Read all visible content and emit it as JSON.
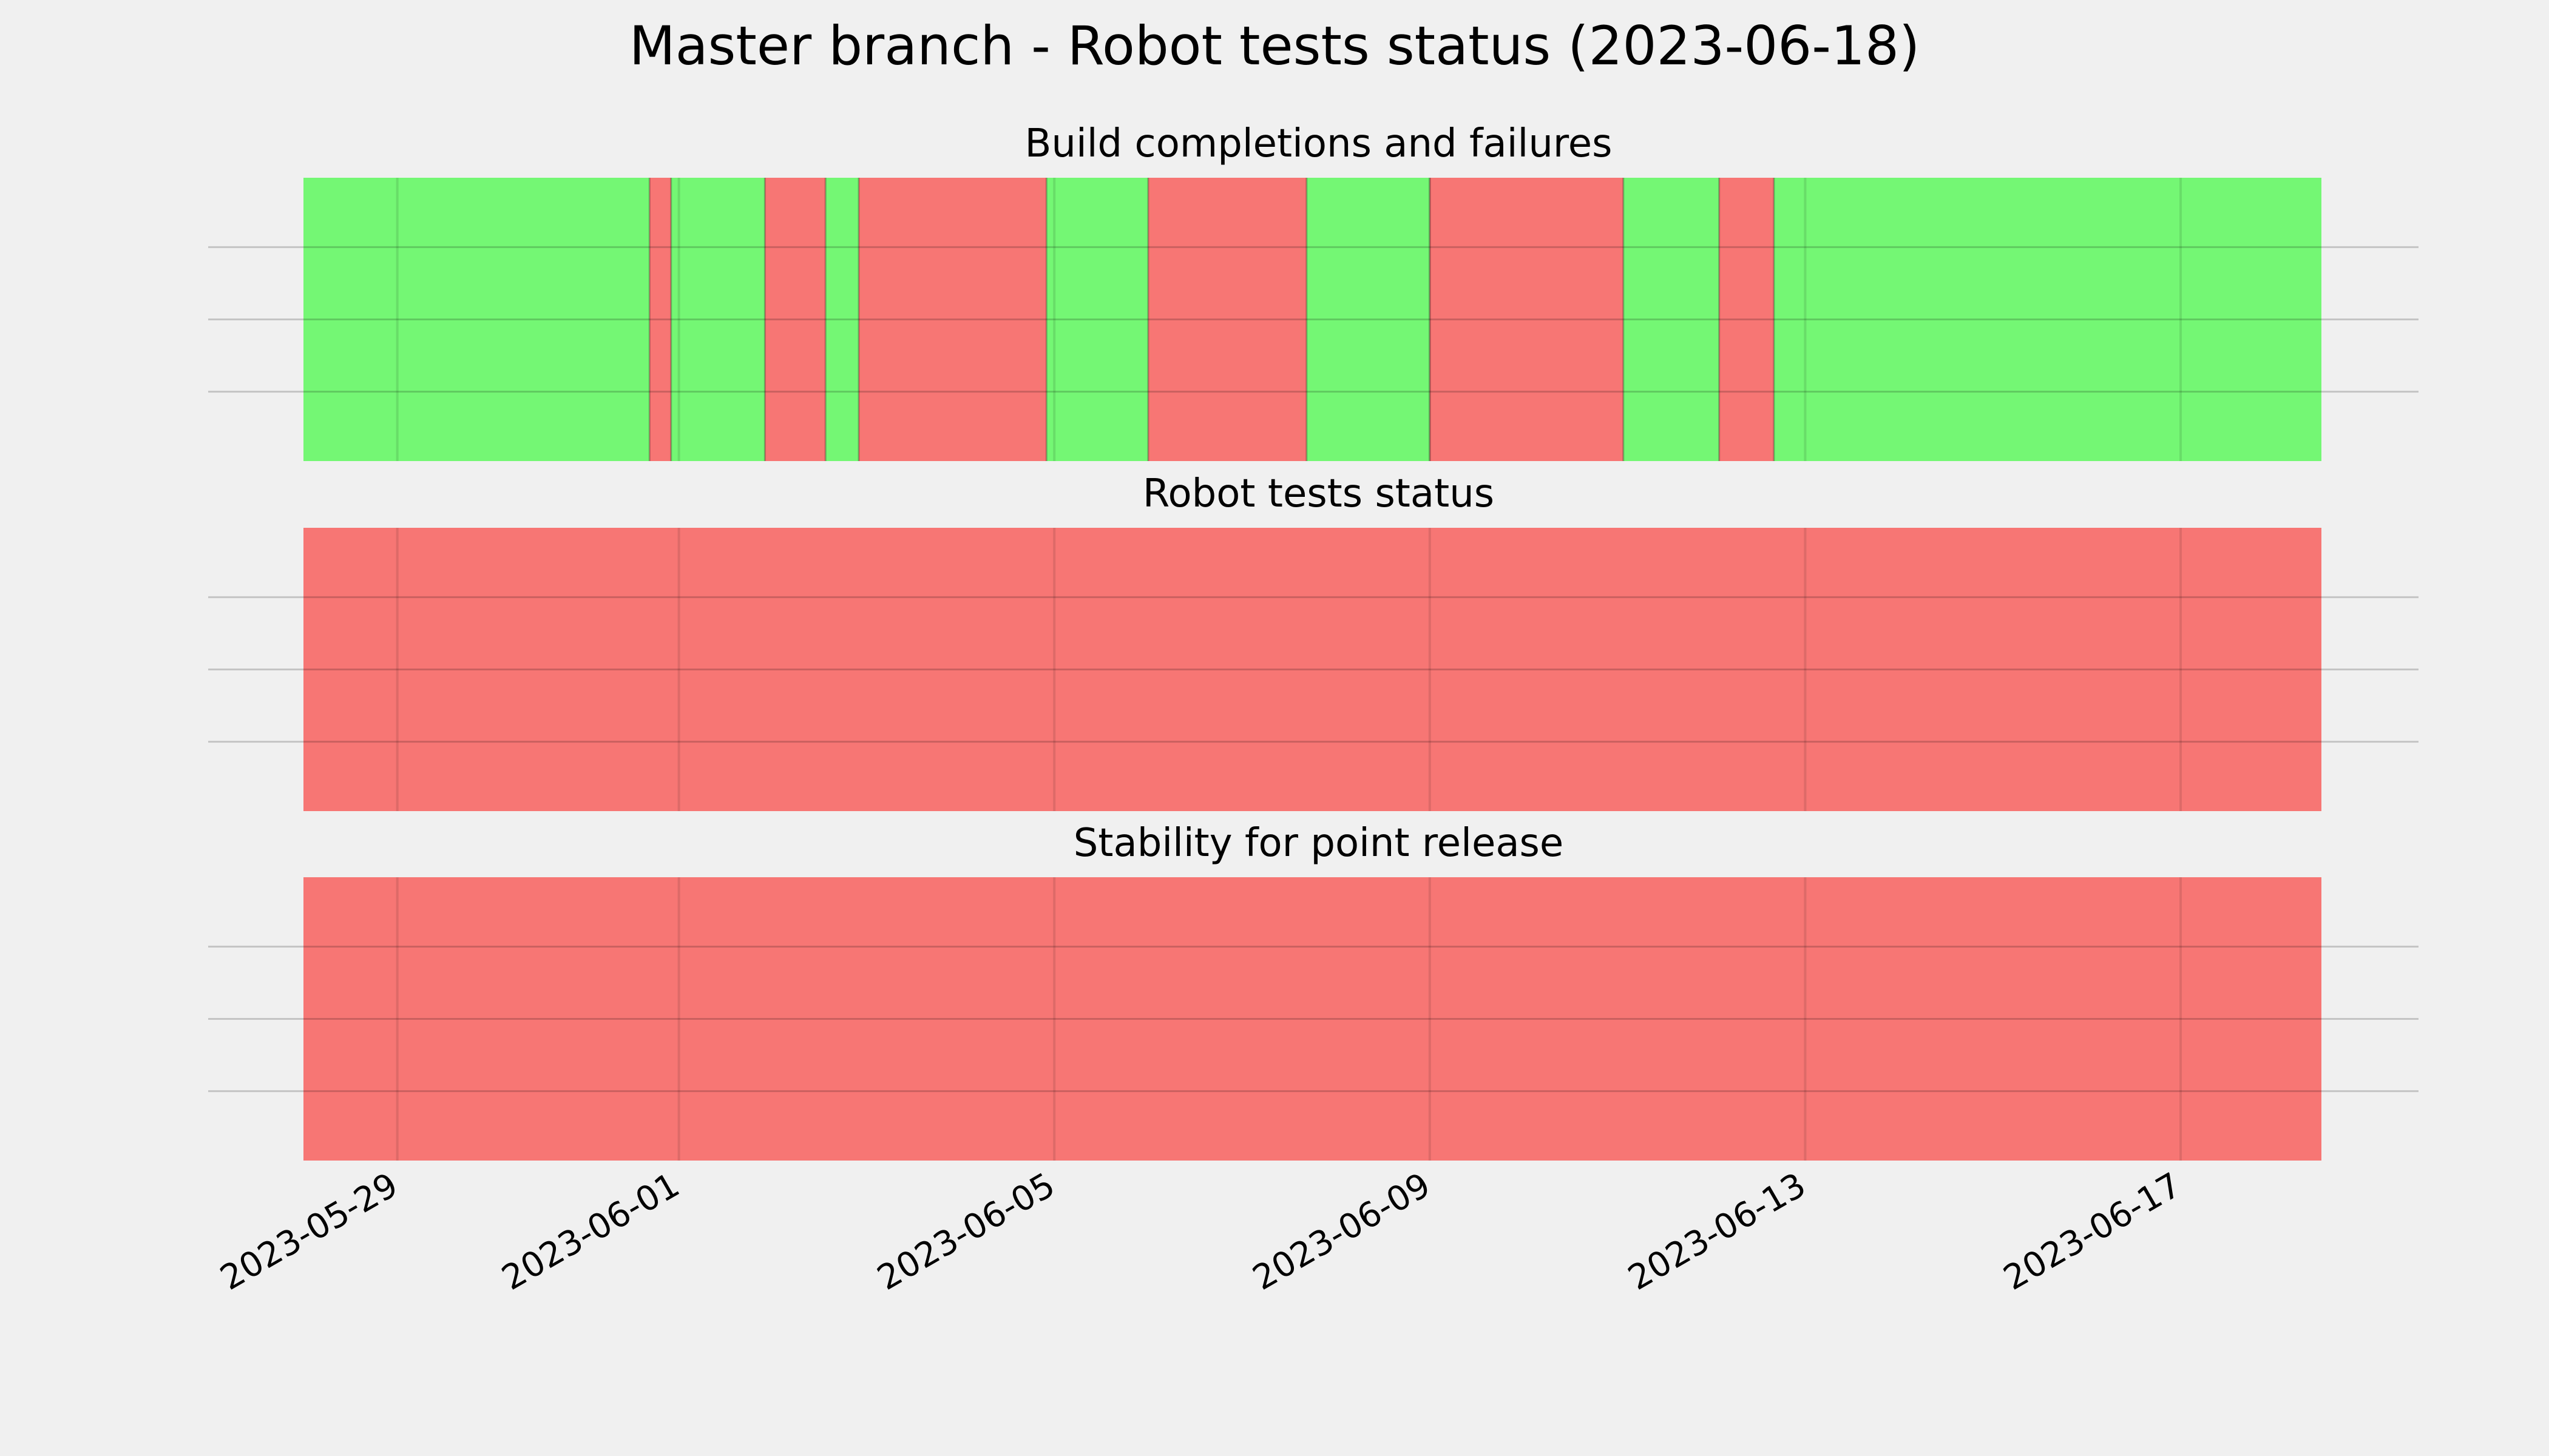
{
  "title": "Master branch - Robot tests status (2023-06-18)",
  "colors": {
    "background": "#f0f0f0",
    "success": "#74f774",
    "failure": "#f77674",
    "grid": "#c8c8c8"
  },
  "chart_data": [
    {
      "type": "area",
      "title": "Build completions and failures",
      "grid": true,
      "xlim": [
        "2023-05-28T00:00",
        "2023-06-18T12:00"
      ],
      "segments": [
        {
          "start": "2023-05-28T00:00",
          "end": "2023-05-31T16:30",
          "status": "success"
        },
        {
          "start": "2023-05-31T16:30",
          "end": "2023-05-31T22:00",
          "status": "failure"
        },
        {
          "start": "2023-05-31T22:00",
          "end": "2023-06-01T22:00",
          "status": "success"
        },
        {
          "start": "2023-06-01T22:00",
          "end": "2023-06-02T13:30",
          "status": "failure"
        },
        {
          "start": "2023-06-02T13:30",
          "end": "2023-06-02T22:00",
          "status": "success"
        },
        {
          "start": "2023-06-02T22:00",
          "end": "2023-06-04T22:00",
          "status": "failure"
        },
        {
          "start": "2023-06-04T22:00",
          "end": "2023-06-06T00:00",
          "status": "success"
        },
        {
          "start": "2023-06-06T00:00",
          "end": "2023-06-07T16:30",
          "status": "failure"
        },
        {
          "start": "2023-06-07T16:30",
          "end": "2023-06-09T00:00",
          "status": "success"
        },
        {
          "start": "2023-06-09T00:00",
          "end": "2023-06-11T01:30",
          "status": "failure"
        },
        {
          "start": "2023-06-11T01:30",
          "end": "2023-06-12T02:00",
          "status": "success"
        },
        {
          "start": "2023-06-12T02:00",
          "end": "2023-06-12T16:00",
          "status": "failure"
        },
        {
          "start": "2023-06-12T16:00",
          "end": "2023-06-18T12:00",
          "status": "success"
        }
      ]
    },
    {
      "type": "area",
      "title": "Robot tests status",
      "grid": true,
      "xlim": [
        "2023-05-28T00:00",
        "2023-06-18T12:00"
      ],
      "segments": [
        {
          "start": "2023-05-28T00:00",
          "end": "2023-06-18T12:00",
          "status": "failure"
        }
      ]
    },
    {
      "type": "area",
      "title": "Stability for point release",
      "grid": true,
      "xlim": [
        "2023-05-28T00:00",
        "2023-06-18T12:00"
      ],
      "segments": [
        {
          "start": "2023-05-28T00:00",
          "end": "2023-06-18T12:00",
          "status": "failure"
        }
      ]
    }
  ],
  "x_ticks": [
    "2023-05-29",
    "2023-06-01",
    "2023-06-05",
    "2023-06-09",
    "2023-06-13",
    "2023-06-17"
  ]
}
